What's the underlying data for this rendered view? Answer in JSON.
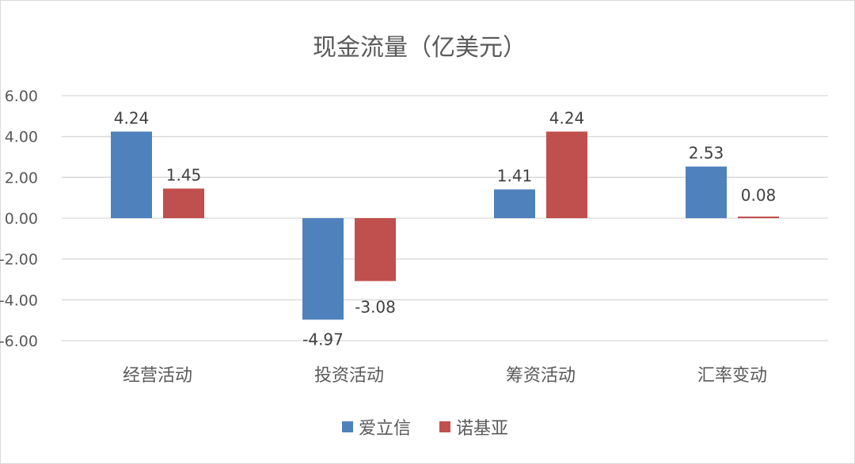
{
  "chart_data": {
    "type": "bar",
    "title": "现金流量（亿美元）",
    "xlabel": "",
    "ylabel": "",
    "categories": [
      "经营活动",
      "投资活动",
      "筹资活动",
      "汇率变动"
    ],
    "series": [
      {
        "name": "爱立信",
        "color": "#4f81bd",
        "values": [
          4.24,
          -4.97,
          1.41,
          2.53
        ],
        "labels": [
          "4.24",
          "-4.97",
          "1.41",
          "2.53"
        ]
      },
      {
        "name": "诺基亚",
        "color": "#c0504d",
        "values": [
          1.45,
          -3.08,
          4.24,
          0.08
        ],
        "labels": [
          "1.45",
          "-3.08",
          "4.24",
          "0.08"
        ]
      }
    ],
    "ylim": [
      -6,
      6
    ],
    "yticks": [
      6,
      4,
      2,
      0,
      -2,
      -4,
      -6
    ],
    "ytick_labels": [
      "6.00",
      "4.00",
      "2.00",
      "0.00",
      "-2.00",
      "-4.00",
      "-6.00"
    ],
    "grid": true,
    "legend_position": "bottom",
    "gridline_color": "#d9d9d9"
  }
}
